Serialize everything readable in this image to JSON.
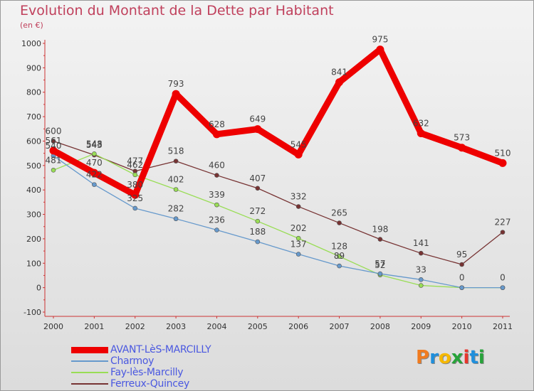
{
  "title": "Evolution du Montant de la Dette par Habitant",
  "unit_label": "(en €)",
  "logo": {
    "letters": [
      "P",
      "r",
      "o",
      "x",
      "i",
      "t",
      "i"
    ],
    "colors": [
      "#f07b1f",
      "#1f8fdc",
      "#f5b800",
      "#27a33a",
      "#e8362d",
      "#1f8fdc",
      "#27a33a"
    ]
  },
  "chart_data": {
    "type": "line",
    "x": [
      "2000",
      "2001",
      "2002",
      "2003",
      "2004",
      "2005",
      "2006",
      "2007",
      "2008",
      "2009",
      "2010",
      "2011"
    ],
    "yticks": [
      "1000",
      "900",
      "800",
      "700",
      "600",
      "500",
      "400",
      "300",
      "200",
      "100",
      "0",
      "-100"
    ],
    "ylim": [
      -100,
      1000
    ],
    "grid": false,
    "legend_position": "bottom-left",
    "series": [
      {
        "name": "AVANT-LèS-MARCILLY",
        "color": "#ee0000",
        "values": [
          561,
          470,
          380,
          793,
          628,
          649,
          545,
          841,
          975,
          632,
          573,
          510
        ],
        "labels": [
          "561",
          "470",
          "380",
          "793",
          "628",
          "649",
          "545",
          "841",
          "975",
          "632",
          "573",
          "510"
        ]
      },
      {
        "name": "Charmoy",
        "color": "#6699cc",
        "values": [
          540,
          422,
          325,
          282,
          236,
          188,
          137,
          89,
          57,
          33,
          0,
          0
        ],
        "labels": [
          "540",
          "422",
          "325",
          "282",
          "236",
          "188",
          "137",
          "89",
          "57",
          "33",
          "0",
          "0"
        ]
      },
      {
        "name": "Fay-lès-Marcilly",
        "color": "#99dd55",
        "values": [
          481,
          548,
          462,
          402,
          339,
          272,
          202,
          128,
          52,
          9,
          0,
          0
        ],
        "labels": [
          "481",
          "548",
          "462",
          "402",
          "339",
          "272",
          "202",
          "128",
          "52",
          "",
          "",
          ""
        ]
      },
      {
        "name": "Ferreux-Quincey",
        "color": "#773333",
        "values": [
          600,
          543,
          477,
          518,
          460,
          407,
          332,
          265,
          198,
          141,
          95,
          227
        ],
        "labels": [
          "600",
          "543",
          "477",
          "518",
          "460",
          "407",
          "332",
          "265",
          "198",
          "141",
          "95",
          "227"
        ]
      }
    ]
  }
}
